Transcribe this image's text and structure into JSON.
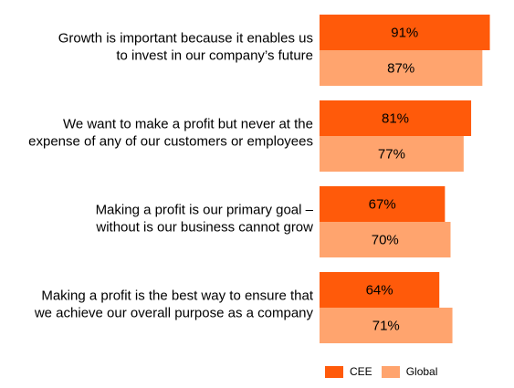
{
  "chart_data": {
    "type": "bar",
    "orientation": "horizontal",
    "title": "",
    "xlabel": "",
    "ylabel": "",
    "xlim": [
      0,
      100
    ],
    "grid": false,
    "legend_position": "bottom-right",
    "categories": [
      [
        "Growth is important because it enables us",
        "to invest in our company’s future"
      ],
      [
        "We want to make a profit but never at the",
        "expense of any of our customers or employees"
      ],
      [
        "Making a profit is our primary goal –",
        "without is our business cannot grow"
      ],
      [
        "Making a profit is the best way to ensure that",
        "we achieve our overall purpose as a company"
      ]
    ],
    "series": [
      {
        "name": "CEE",
        "color": "#FF5A0A",
        "values": [
          91,
          81,
          67,
          64
        ],
        "labels": [
          "91%",
          "81%",
          "67%",
          "64%"
        ]
      },
      {
        "name": "Global",
        "color": "#FFA46E",
        "values": [
          87,
          77,
          70,
          71
        ],
        "labels": [
          "87%",
          "77%",
          "70%",
          "71%"
        ]
      }
    ]
  }
}
